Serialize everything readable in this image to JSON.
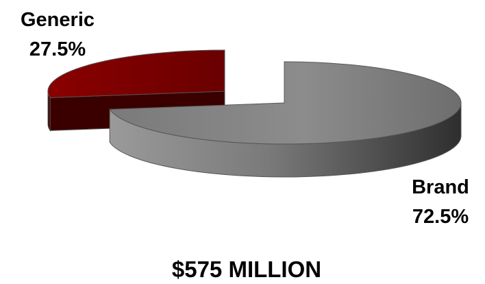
{
  "chart_data": {
    "type": "pie",
    "style": "3d-exploded",
    "categories": [
      "Generic",
      "Brand"
    ],
    "values": [
      27.5,
      72.5
    ],
    "value_labels": [
      "27.5%",
      "72.5%"
    ],
    "colors": {
      "Generic": "#7a0000",
      "Brand": "#8a8a8a"
    },
    "total_label": "$575 MILLION",
    "legend": "none"
  }
}
